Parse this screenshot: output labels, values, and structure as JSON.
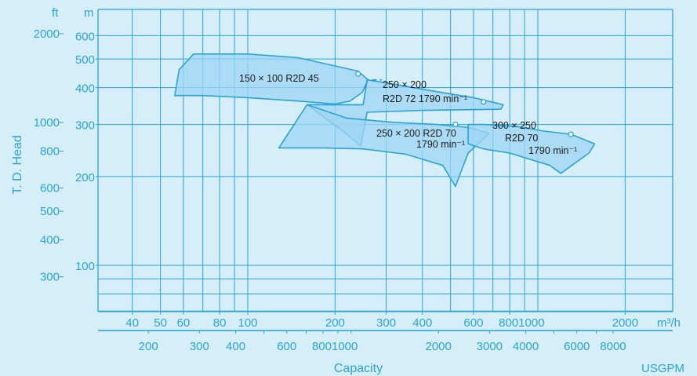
{
  "chart_data": {
    "type": "area",
    "title": "",
    "xlabel": "Capacity",
    "x_unit_primary": "m³/h",
    "x_unit_secondary": "USGPM",
    "ylabel": "T. D. Head",
    "y_unit_primary": "m",
    "y_unit_secondary": "ft",
    "x_scale": "log",
    "y_scale": "log",
    "xlim": [
      20,
      3500
    ],
    "ylim": [
      50,
      650
    ],
    "grid": true,
    "x_ticks": [
      "40",
      "50",
      "60",
      "80",
      "100",
      "200",
      "300",
      "400",
      "600",
      "8001000",
      "2000"
    ],
    "x_ticks_usgpm": [
      "200",
      "300",
      "400",
      "600",
      "8001000",
      "2000",
      "3000",
      "4000",
      "6000",
      "8000"
    ],
    "y_ticks_m": [
      "100",
      "200",
      "300",
      "400",
      "500",
      "600"
    ],
    "y_ticks_ft": [
      "300",
      "400",
      "500",
      "600",
      "800",
      "1000",
      "2000"
    ],
    "series": [
      {
        "name": "150 × 100 R2D 45",
        "points": [
          [
            56,
            375
          ],
          [
            58,
            460
          ],
          [
            65,
            520
          ],
          [
            100,
            520
          ],
          [
            150,
            505
          ],
          [
            240,
            455
          ],
          [
            260,
            425
          ],
          [
            248,
            385
          ],
          [
            225,
            360
          ],
          [
            200,
            352
          ],
          [
            150,
            360
          ],
          [
            100,
            370
          ],
          [
            70,
            376
          ],
          [
            56,
            376
          ]
        ]
      },
      {
        "name": "250 × 200 R2D 72 1790 min⁻¹",
        "points": [
          [
            160,
            350
          ],
          [
            250,
            350
          ],
          [
            258,
            425
          ],
          [
            300,
            415
          ],
          [
            400,
            395
          ],
          [
            600,
            370
          ],
          [
            760,
            350
          ],
          [
            745,
            338
          ],
          [
            400,
            335
          ],
          [
            258,
            330
          ],
          [
            245,
            254
          ],
          [
            215,
            283
          ],
          [
            160,
            350
          ]
        ]
      },
      {
        "name": "250 × 200 R2D 70 1790 min⁻¹",
        "points": [
          [
            128,
            250
          ],
          [
            160,
            350
          ],
          [
            220,
            315
          ],
          [
            320,
            305
          ],
          [
            450,
            300
          ],
          [
            580,
            293
          ],
          [
            680,
            280
          ],
          [
            575,
            240
          ],
          [
            520,
            185
          ],
          [
            470,
            218
          ],
          [
            350,
            238
          ],
          [
            250,
            248
          ],
          [
            180,
            250
          ],
          [
            128,
            250
          ]
        ]
      },
      {
        "name": "300 × 250 R2D 70 1790 min⁻¹",
        "points": [
          [
            575,
            300
          ],
          [
            650,
            300
          ],
          [
            850,
            295
          ],
          [
            1050,
            285
          ],
          [
            1300,
            278
          ],
          [
            1570,
            258
          ],
          [
            1500,
            240
          ],
          [
            1200,
            205
          ],
          [
            1100,
            218
          ],
          [
            800,
            240
          ],
          [
            650,
            248
          ],
          [
            575,
            258
          ]
        ]
      }
    ],
    "markers": [
      [
        240,
        445
      ],
      [
        650,
        358
      ],
      [
        520,
        300
      ],
      [
        1300,
        278
      ]
    ],
    "curve_labels": [
      {
        "text": "150 × 100 R2D 45",
        "lines": [
          "150 × 100 R2D 45"
        ]
      },
      {
        "text": "250 × 200 R2D 72 1790 min⁻¹",
        "lines": [
          "250 × 200",
          "R2D 72  1790 min⁻¹"
        ]
      },
      {
        "text": "250 × 200 R2D 70 1790 min⁻¹",
        "lines": [
          "250 × 200 R2D 70",
          "1790 min⁻¹"
        ]
      },
      {
        "text": "300 × 250 R2D 70 1790 min⁻¹",
        "lines": [
          "300 × 250",
          "R2D 70",
          "1790 min⁻¹"
        ]
      }
    ],
    "colors": {
      "background": "#d6eefa",
      "axis": "#29a3d6",
      "region_fill": "#9ed6f3",
      "region_stroke": "#29a3d6"
    }
  }
}
